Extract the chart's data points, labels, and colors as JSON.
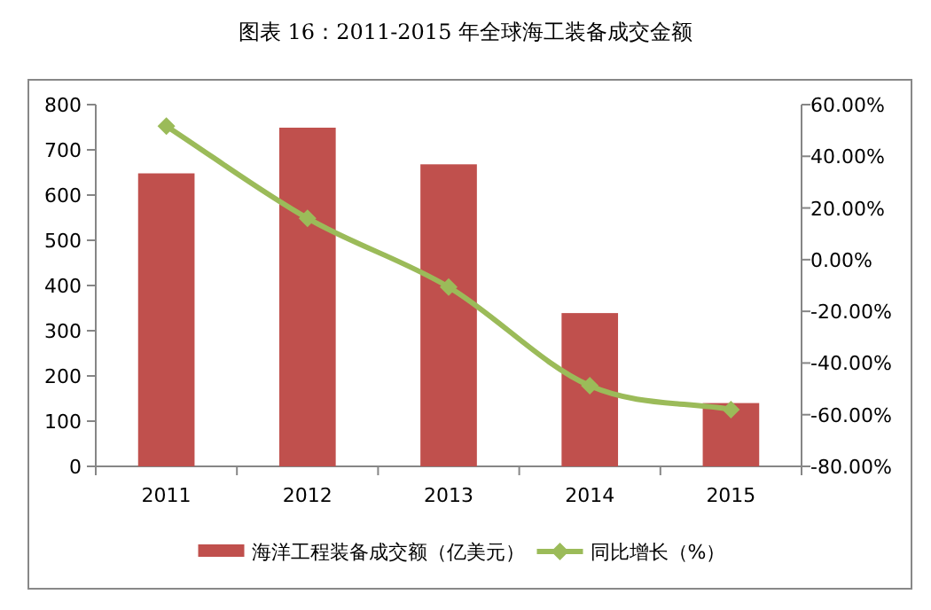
{
  "chart_data": {
    "type": "bar",
    "title": "图表 16：2011-2015 年全球海工装备成交金额",
    "categories": [
      "2011",
      "2012",
      "2013",
      "2014",
      "2015"
    ],
    "series": [
      {
        "name": "海洋工程装备成交额（亿美元）",
        "color": "#c0504d",
        "values": [
          648,
          749,
          668,
          339,
          140
        ]
      },
      {
        "name": "同比增长（%）",
        "type": "line",
        "axis": "y2",
        "color": "#9bbb59",
        "marker": "diamond",
        "values": [
          51.7,
          16,
          -10.6,
          -48.8,
          -58
        ]
      }
    ],
    "ylim": [
      0,
      800
    ],
    "yticks": [
      0,
      100,
      200,
      300,
      400,
      500,
      600,
      700,
      800
    ],
    "y2lim": [
      -80,
      60
    ],
    "y2ticks": [
      {
        "value": -80,
        "label": "-80.00%"
      },
      {
        "value": -60,
        "label": "-60.00%"
      },
      {
        "value": -40,
        "label": "-40.00%"
      },
      {
        "value": -20,
        "label": "-20.00%"
      },
      {
        "value": 0,
        "label": "0.00%"
      },
      {
        "value": 20,
        "label": "20.00%"
      },
      {
        "value": 40,
        "label": "40.00%"
      },
      {
        "value": 60,
        "label": "60.00%"
      }
    ],
    "legend": "bottom"
  }
}
